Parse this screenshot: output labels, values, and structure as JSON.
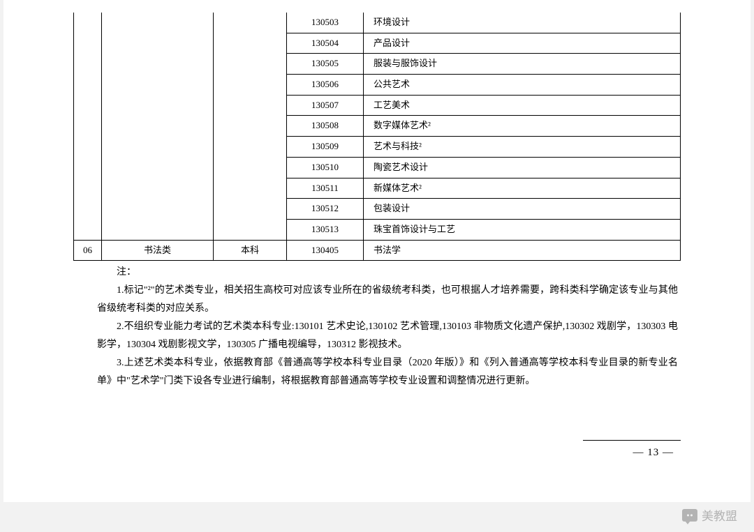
{
  "table": {
    "continued_rows": [
      {
        "code": "130503",
        "name": "环境设计"
      },
      {
        "code": "130504",
        "name": "产品设计"
      },
      {
        "code": "130505",
        "name": "服装与服饰设计"
      },
      {
        "code": "130506",
        "name": "公共艺术"
      },
      {
        "code": "130507",
        "name": "工艺美术"
      },
      {
        "code": "130508",
        "name": "数字媒体艺术²"
      },
      {
        "code": "130509",
        "name": "艺术与科技²"
      },
      {
        "code": "130510",
        "name": "陶瓷艺术设计"
      },
      {
        "code": "130511",
        "name": "新媒体艺术²"
      },
      {
        "code": "130512",
        "name": "包装设计"
      },
      {
        "code": "130513",
        "name": "珠宝首饰设计与工艺"
      }
    ],
    "last_row": {
      "idx": "06",
      "category": "书法类",
      "level": "本科",
      "code": "130405",
      "name": "书法学"
    },
    "border_color": "#000000",
    "font_size": 13
  },
  "notes": {
    "heading": "注：",
    "p1": "1.标记\"²\"的艺术类专业，相关招生高校可对应该专业所在的省级统考科类，也可根据人才培养需要，跨科类科学确定该专业与其他省级统考科类的对应关系。",
    "p2": "2.不组织专业能力考试的艺术类本科专业:130101 艺术史论,130102 艺术管理,130103 非物质文化遗产保护,130302 戏剧学，130303 电影学，130304 戏剧影视文学，130305 广播电视编导，130312 影视技术。",
    "p3": "3.上述艺术类本科专业，依据教育部《普通高等学校本科专业目录（2020 年版）》和《列入普通高等学校本科专业目录的新专业名单》中\"艺术学\"门类下设各专业进行编制，将根据教育部普通高等学校专业设置和调整情况进行更新。"
  },
  "page_number": "— 13 —",
  "watermark": "美教盟",
  "colors": {
    "page_bg": "#ffffff",
    "outer_bg": "#f2f2f2",
    "text": "#000000",
    "watermark": "#a9a9a9"
  }
}
